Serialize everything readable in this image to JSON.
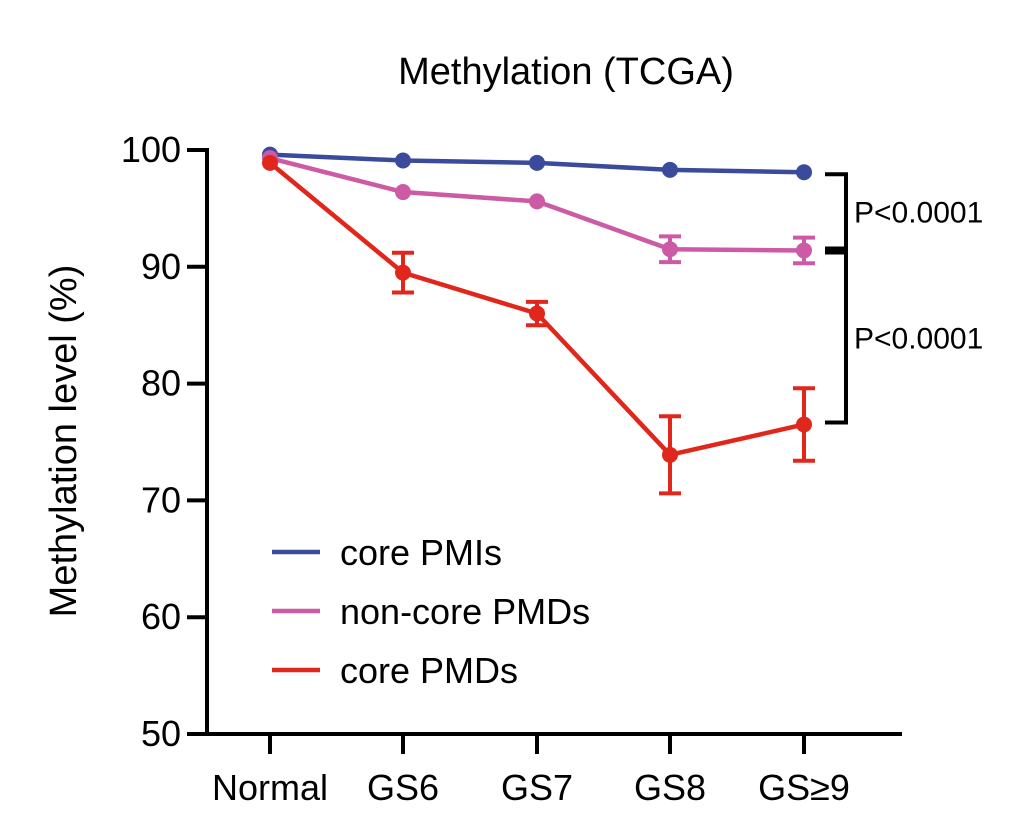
{
  "chart_data": {
    "type": "line",
    "title": "Methylation (TCGA)",
    "xlabel": "",
    "ylabel": "Methylation level (%)",
    "categories": [
      "Normal",
      "GS6",
      "GS7",
      "GS8",
      "GS≥9"
    ],
    "ylim": [
      50,
      100
    ],
    "yticks": [
      100,
      90,
      80,
      70,
      60,
      50
    ],
    "grid": false,
    "legend_position": "lower-left",
    "series": [
      {
        "name": "core PMIs",
        "color": "#3a4b9c",
        "values": [
          99.6,
          99.1,
          98.9,
          98.3,
          98.1
        ],
        "errors": [
          0,
          0,
          0,
          0,
          0
        ]
      },
      {
        "name": "non-core PMDs",
        "color": "#cd5aa5",
        "values": [
          99.3,
          96.4,
          95.6,
          91.5,
          91.4
        ],
        "errors": [
          0,
          0,
          0,
          1.1,
          1.1
        ]
      },
      {
        "name": "core PMDs",
        "color": "#e1261c",
        "values": [
          98.9,
          89.5,
          86.0,
          73.9,
          76.5
        ],
        "errors": [
          0,
          1.7,
          1.0,
          3.3,
          3.1
        ]
      }
    ],
    "annotations": [
      {
        "text": "P<0.0001",
        "from": 98.1,
        "to": 91.4,
        "between": [
          "core PMIs",
          "non-core PMDs"
        ]
      },
      {
        "text": "P<0.0001",
        "from": 91.4,
        "to": 76.5,
        "between": [
          "non-core PMDs",
          "core PMDs"
        ]
      }
    ]
  }
}
